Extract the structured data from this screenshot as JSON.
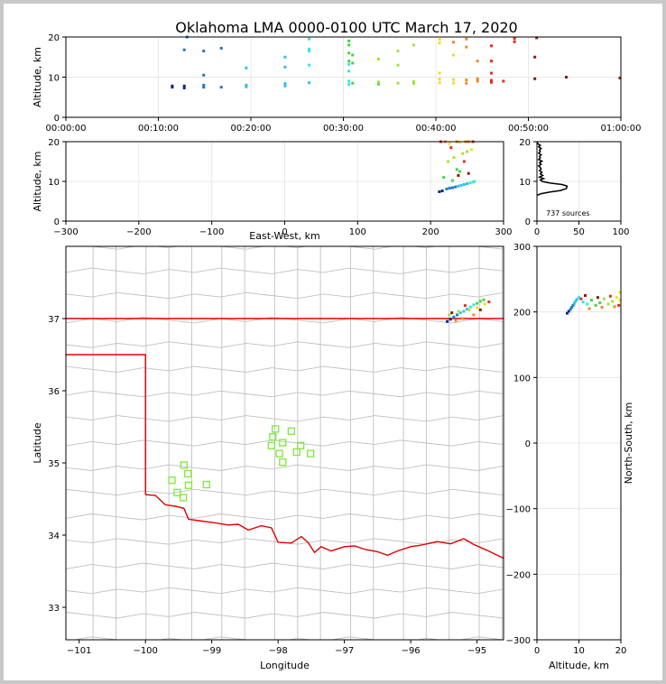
{
  "title": "Oklahoma LMA 0000-0100 UTC March 17, 2020",
  "colors": {
    "sequence": [
      "#0a2a8a",
      "#1e78c8",
      "#2fc0e8",
      "#35e6e6",
      "#48d448",
      "#a6e23a",
      "#f0e020",
      "#f08a20",
      "#e03020",
      "#8a1a10"
    ],
    "boundary": "#e00000",
    "county": "#c0c0c0",
    "station": "#7ee83a",
    "grid": "#e8e8e8"
  },
  "chart_data": [
    {
      "id": "alt-time",
      "type": "scatter",
      "xlabel": "",
      "ylabel": "Altitude, km",
      "xlim": [
        0,
        60
      ],
      "ylim": [
        0,
        20
      ],
      "xticks": [
        0,
        10,
        20,
        30,
        40,
        50,
        60
      ],
      "xtick_labels": [
        "00:00:00",
        "00:10:00",
        "00:20:00",
        "00:30:00",
        "00:40:00",
        "00:50:00",
        "01:00:00"
      ],
      "yticks": [
        0,
        10,
        20
      ],
      "ytick_labels": [
        "0",
        "10",
        "20"
      ],
      "points": [
        [
          11.5,
          7.5
        ],
        [
          11.5,
          7.8
        ],
        [
          12.8,
          7.3
        ],
        [
          12.8,
          7.8
        ],
        [
          12.8,
          16.8
        ],
        [
          13.1,
          20
        ],
        [
          14.9,
          7.5
        ],
        [
          14.9,
          8.0
        ],
        [
          14.9,
          10.5
        ],
        [
          14.9,
          16.5
        ],
        [
          16.8,
          7.5
        ],
        [
          16.8,
          17.2
        ],
        [
          19.5,
          7.6
        ],
        [
          19.5,
          8.0
        ],
        [
          19.5,
          12.3
        ],
        [
          23.7,
          7.8
        ],
        [
          23.7,
          8.4
        ],
        [
          23.7,
          12.5
        ],
        [
          23.7,
          15.0
        ],
        [
          26.3,
          8.6
        ],
        [
          26.3,
          13.0
        ],
        [
          26.3,
          16.5
        ],
        [
          26.3,
          17.0
        ],
        [
          26.3,
          19.5
        ],
        [
          30.6,
          8.2
        ],
        [
          30.6,
          9.0
        ],
        [
          30.6,
          11.5
        ],
        [
          30.6,
          13.2
        ],
        [
          30.6,
          14.0
        ],
        [
          30.6,
          16.0
        ],
        [
          30.6,
          18.0
        ],
        [
          30.6,
          19.0
        ],
        [
          31.0,
          8.5
        ],
        [
          31.0,
          13.5
        ],
        [
          31.0,
          15.5
        ],
        [
          33.8,
          8.3
        ],
        [
          33.8,
          8.8
        ],
        [
          33.8,
          14.5
        ],
        [
          35.9,
          8.5
        ],
        [
          35.9,
          13.0
        ],
        [
          35.9,
          16.5
        ],
        [
          37.6,
          8.4
        ],
        [
          37.6,
          8.9
        ],
        [
          37.6,
          18.0
        ],
        [
          40.4,
          8.6
        ],
        [
          40.4,
          9.5
        ],
        [
          40.4,
          11.0
        ],
        [
          40.4,
          18.5
        ],
        [
          40.4,
          19.4
        ],
        [
          41.9,
          8.5
        ],
        [
          41.9,
          9.4
        ],
        [
          41.9,
          15.5
        ],
        [
          41.9,
          18.7
        ],
        [
          43.3,
          8.5
        ],
        [
          43.3,
          9.3
        ],
        [
          43.3,
          17.5
        ],
        [
          43.3,
          19.5
        ],
        [
          44.5,
          9.0
        ],
        [
          44.5,
          9.6
        ],
        [
          44.5,
          14.0
        ],
        [
          46.0,
          8.7
        ],
        [
          46.0,
          9.2
        ],
        [
          46.0,
          11.0
        ],
        [
          46.0,
          14.0
        ],
        [
          46.0,
          17.8
        ],
        [
          47.3,
          9.0
        ],
        [
          48.5,
          18.8
        ],
        [
          48.5,
          19.6
        ],
        [
          50.7,
          9.6
        ],
        [
          50.7,
          15.0
        ],
        [
          50.9,
          19.8
        ],
        [
          54.1,
          10.0
        ],
        [
          59.9,
          9.8
        ]
      ]
    },
    {
      "id": "alt-ew",
      "type": "scatter",
      "xlabel": "East-West, km",
      "ylabel": "Altitude, km",
      "xlim": [
        -300,
        300
      ],
      "ylim": [
        0,
        20
      ],
      "xticks": [
        -300,
        -200,
        -100,
        0,
        100,
        200,
        300
      ],
      "xtick_labels": [
        "−300",
        "−200",
        "−100",
        "0",
        "100",
        "200",
        "300"
      ],
      "yticks": [
        0,
        10,
        20
      ],
      "ytick_labels": [
        "0",
        "10",
        "20"
      ],
      "points": [
        [
          212,
          7.4
        ],
        [
          216,
          7.6
        ],
        [
          222,
          8.1
        ],
        [
          226,
          8.3
        ],
        [
          230,
          8.4
        ],
        [
          234,
          8.6
        ],
        [
          238,
          8.8
        ],
        [
          242,
          9.0
        ],
        [
          246,
          9.2
        ],
        [
          250,
          9.4
        ],
        [
          254,
          9.6
        ],
        [
          258,
          9.8
        ],
        [
          260,
          10.0
        ],
        [
          218,
          11.0
        ],
        [
          230,
          10.2
        ],
        [
          240,
          12.5
        ],
        [
          236,
          13.0
        ],
        [
          224,
          15.0
        ],
        [
          232,
          16.0
        ],
        [
          244,
          17.0
        ],
        [
          250,
          17.5
        ],
        [
          256,
          18.0
        ],
        [
          226,
          19.5
        ],
        [
          240,
          19.8
        ],
        [
          248,
          20
        ],
        [
          252,
          20
        ],
        [
          236,
          20
        ],
        [
          220,
          20
        ],
        [
          258,
          20
        ],
        [
          214,
          20
        ],
        [
          228,
          18.5
        ],
        [
          246,
          15.0
        ],
        [
          238,
          11.5
        ],
        [
          252,
          12.0
        ]
      ]
    },
    {
      "id": "alt-histogram",
      "type": "line",
      "xlabel": "",
      "ylabel": "",
      "annotation": "737 sources",
      "xlim": [
        0,
        100
      ],
      "ylim": [
        0,
        20
      ],
      "xticks": [
        0,
        50,
        100
      ],
      "xtick_labels": [
        "0",
        "50",
        "100"
      ],
      "yticks": [
        0,
        10,
        20
      ],
      "ytick_labels": [
        "0",
        "10",
        "20"
      ],
      "points": [
        [
          0,
          6.5
        ],
        [
          5,
          6.9
        ],
        [
          15,
          7.3
        ],
        [
          28,
          7.7
        ],
        [
          35,
          8.2
        ],
        [
          36,
          8.8
        ],
        [
          30,
          9.2
        ],
        [
          15,
          9.6
        ],
        [
          6,
          10.0
        ],
        [
          4,
          10.4
        ],
        [
          8,
          10.7
        ],
        [
          3,
          11.1
        ],
        [
          7,
          11.5
        ],
        [
          4,
          11.9
        ],
        [
          6,
          12.3
        ],
        [
          3,
          12.7
        ],
        [
          5,
          13.1
        ],
        [
          4,
          13.5
        ],
        [
          2,
          13.9
        ],
        [
          5,
          14.3
        ],
        [
          3,
          14.7
        ],
        [
          6,
          15.1
        ],
        [
          2,
          15.5
        ],
        [
          4,
          15.9
        ],
        [
          3,
          16.3
        ],
        [
          5,
          16.7
        ],
        [
          2,
          17.1
        ],
        [
          4,
          17.5
        ],
        [
          3,
          17.9
        ],
        [
          5,
          18.3
        ],
        [
          2,
          18.7
        ],
        [
          4,
          19.1
        ],
        [
          1,
          19.5
        ],
        [
          0,
          20
        ]
      ]
    },
    {
      "id": "plan-view",
      "type": "scatter",
      "xlabel": "Longitude",
      "ylabel": "Latitude",
      "xlim": [
        -101.2,
        -94.6
      ],
      "ylim": [
        32.55,
        38.0
      ],
      "xticks": [
        -101,
        -100,
        -99,
        -98,
        -97,
        -96,
        -95
      ],
      "xtick_labels": [
        "−101",
        "−100",
        "−99",
        "−98",
        "−97",
        "−96",
        "−95"
      ],
      "yticks": [
        33,
        34,
        35,
        36,
        37
      ],
      "ytick_labels": [
        "33",
        "34",
        "35",
        "36",
        "37"
      ],
      "points": [
        [
          -95.45,
          36.96
        ],
        [
          -95.4,
          36.99
        ],
        [
          -95.35,
          37.02
        ],
        [
          -95.3,
          37.05
        ],
        [
          -95.25,
          37.08
        ],
        [
          -95.2,
          37.1
        ],
        [
          -95.15,
          37.13
        ],
        [
          -95.1,
          37.16
        ],
        [
          -95.05,
          37.19
        ],
        [
          -95.0,
          37.21
        ],
        [
          -94.95,
          37.24
        ],
        [
          -94.9,
          37.26
        ],
        [
          -95.42,
          37.05
        ],
        [
          -95.28,
          37.1
        ],
        [
          -95.12,
          37.12
        ],
        [
          -95.0,
          37.15
        ],
        [
          -94.88,
          37.2
        ],
        [
          -95.22,
          37.0
        ],
        [
          -95.05,
          37.05
        ],
        [
          -95.32,
          36.97
        ],
        [
          -94.82,
          37.23
        ],
        [
          -95.18,
          37.18
        ],
        [
          -94.95,
          37.12
        ],
        [
          -95.38,
          37.08
        ]
      ],
      "stations": [
        [
          -98.04,
          35.47
        ],
        [
          -97.8,
          35.44
        ],
        [
          -98.08,
          35.36
        ],
        [
          -97.93,
          35.28
        ],
        [
          -98.1,
          35.24
        ],
        [
          -97.66,
          35.24
        ],
        [
          -97.98,
          35.13
        ],
        [
          -97.72,
          35.15
        ],
        [
          -97.51,
          35.13
        ],
        [
          -97.93,
          35.01
        ],
        [
          -99.42,
          34.97
        ],
        [
          -99.36,
          34.85
        ],
        [
          -99.6,
          34.76
        ],
        [
          -99.35,
          34.69
        ],
        [
          -99.08,
          34.7
        ],
        [
          -99.52,
          34.59
        ],
        [
          -99.43,
          34.52
        ]
      ]
    },
    {
      "id": "ns-alt",
      "type": "scatter",
      "xlabel": "Altitude, km",
      "ylabel": "North-South, km",
      "xlim": [
        0,
        20
      ],
      "ylim": [
        -300,
        300
      ],
      "xticks": [
        0,
        10,
        20
      ],
      "xtick_labels": [
        "0",
        "10",
        "20"
      ],
      "yticks": [
        -300,
        -200,
        -100,
        0,
        100,
        200,
        300
      ],
      "ytick_labels": [
        "−300",
        "−200",
        "−100",
        "0",
        "100",
        "200",
        "300"
      ],
      "points": [
        [
          7.2,
          198
        ],
        [
          7.6,
          201
        ],
        [
          8.0,
          204
        ],
        [
          8.3,
          207
        ],
        [
          8.6,
          210
        ],
        [
          8.9,
          213
        ],
        [
          9.2,
          216
        ],
        [
          9.5,
          219
        ],
        [
          10.0,
          222
        ],
        [
          11.0,
          215
        ],
        [
          12.0,
          212
        ],
        [
          13.0,
          218
        ],
        [
          14.0,
          210
        ],
        [
          15.0,
          214
        ],
        [
          16.0,
          220
        ],
        [
          17.0,
          212
        ],
        [
          18.0,
          216
        ],
        [
          19.0,
          222
        ],
        [
          19.8,
          230
        ],
        [
          19.8,
          218
        ],
        [
          12.5,
          205
        ],
        [
          15.5,
          207
        ],
        [
          18.5,
          208
        ],
        [
          10.5,
          220
        ],
        [
          17.5,
          224
        ],
        [
          19.5,
          210
        ],
        [
          11.5,
          225
        ],
        [
          14.5,
          222
        ]
      ]
    }
  ],
  "boundaries": {
    "ok_ks_border": [
      [
        -101.2,
        37.0
      ],
      [
        -94.6,
        37.0
      ]
    ],
    "ok_tx_panhandle": [
      [
        -101.2,
        36.5
      ],
      [
        -100.0,
        36.5
      ],
      [
        -100.0,
        34.56
      ]
    ],
    "red_river": [
      [
        -100.0,
        34.56
      ],
      [
        -99.85,
        34.55
      ],
      [
        -99.7,
        34.42
      ],
      [
        -99.55,
        34.4
      ],
      [
        -99.42,
        34.37
      ],
      [
        -99.35,
        34.22
      ],
      [
        -99.2,
        34.2
      ],
      [
        -98.95,
        34.17
      ],
      [
        -98.75,
        34.14
      ],
      [
        -98.6,
        34.15
      ],
      [
        -98.45,
        34.07
      ],
      [
        -98.25,
        34.13
      ],
      [
        -98.1,
        34.1
      ],
      [
        -98.0,
        33.9
      ],
      [
        -97.8,
        33.89
      ],
      [
        -97.65,
        33.98
      ],
      [
        -97.55,
        33.9
      ],
      [
        -97.45,
        33.76
      ],
      [
        -97.35,
        33.84
      ],
      [
        -97.2,
        33.78
      ],
      [
        -97.0,
        33.84
      ],
      [
        -96.85,
        33.85
      ],
      [
        -96.68,
        33.8
      ],
      [
        -96.5,
        33.77
      ],
      [
        -96.35,
        33.72
      ],
      [
        -96.2,
        33.78
      ],
      [
        -96.0,
        33.84
      ],
      [
        -95.85,
        33.86
      ],
      [
        -95.6,
        33.91
      ],
      [
        -95.4,
        33.88
      ],
      [
        -95.2,
        33.95
      ],
      [
        -95.05,
        33.87
      ],
      [
        -94.85,
        33.79
      ],
      [
        -94.6,
        33.68
      ]
    ]
  }
}
